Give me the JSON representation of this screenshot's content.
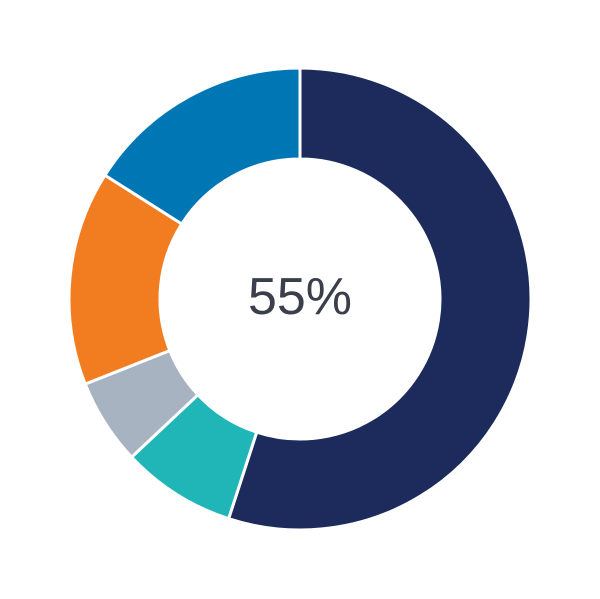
{
  "chart_data": {
    "type": "pie",
    "variant": "donut",
    "center_label": "55%",
    "start": "top",
    "direction": "clockwise",
    "slices": [
      {
        "value": 55,
        "color": "#1c2b5b"
      },
      {
        "value": 8,
        "color": "#20b6b8"
      },
      {
        "value": 6,
        "color": "#a8b3c2"
      },
      {
        "value": 15,
        "color": "#f27d21"
      },
      {
        "value": 16,
        "color": "#0077b5"
      }
    ]
  }
}
